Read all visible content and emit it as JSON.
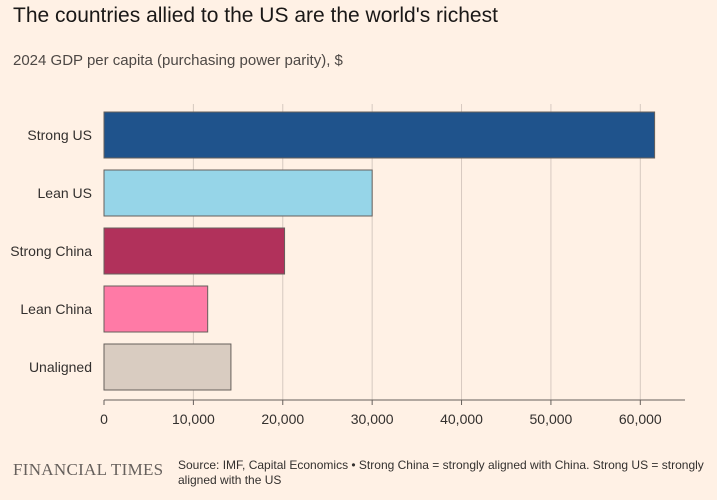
{
  "title": "The countries allied to the US are the world's richest",
  "subtitle": "2024 GDP per capita (purchasing power parity), $",
  "footer": {
    "brand": "FINANCIAL TIMES",
    "source": "Source: IMF, Capital Economics • Strong China = strongly aligned with China. Strong US = strongly aligned with the US"
  },
  "colors": {
    "background": "#fff1e5",
    "gridline": "#d6c9c0",
    "axis": "#66605c"
  },
  "chart_data": {
    "type": "bar",
    "orientation": "horizontal",
    "categories": [
      "Strong US",
      "Lean US",
      "Strong China",
      "Lean China",
      "Unaligned"
    ],
    "values": [
      61600,
      30000,
      20200,
      11600,
      14200
    ],
    "colors": [
      "#1f538c",
      "#96d5e8",
      "#b1315b",
      "#ff7aa6",
      "#d9ccc1"
    ],
    "xlim": [
      0,
      65000
    ],
    "xticks": [
      0,
      10000,
      20000,
      30000,
      40000,
      50000,
      60000
    ],
    "xtick_labels": [
      "0",
      "10,000",
      "20,000",
      "30,000",
      "40,000",
      "50,000",
      "60,000"
    ],
    "grid": true
  }
}
